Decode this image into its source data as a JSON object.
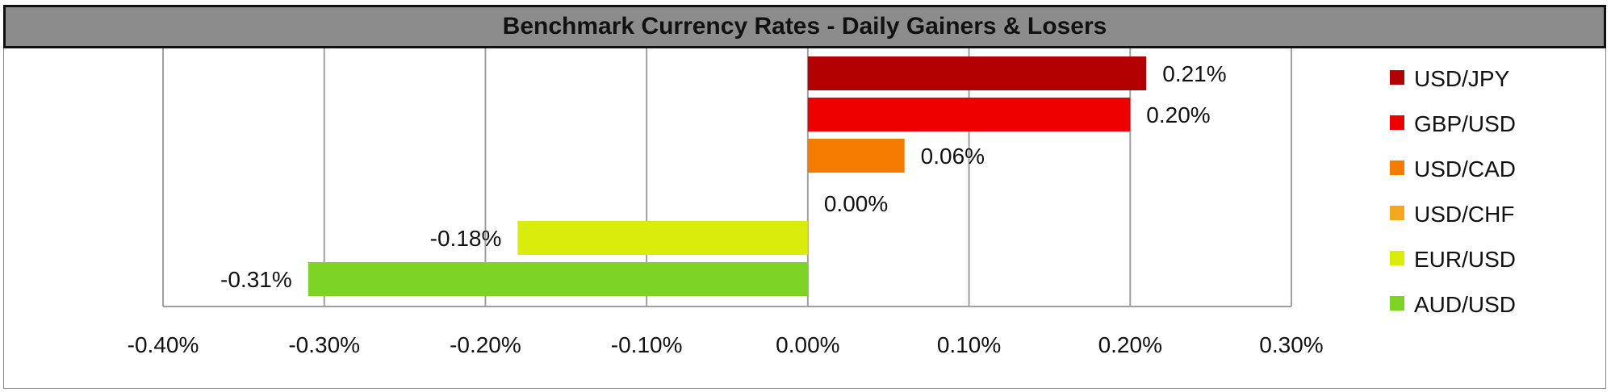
{
  "chart_data": {
    "type": "bar",
    "orientation": "horizontal",
    "title": "Benchmark Currency Rates - Daily Gainers & Losers",
    "xlim": [
      -0.4,
      0.3
    ],
    "x_ticks": [
      "-0.40%",
      "-0.30%",
      "-0.20%",
      "-0.10%",
      "0.00%",
      "0.10%",
      "0.20%",
      "0.30%"
    ],
    "x_tick_values": [
      -0.4,
      -0.3,
      -0.2,
      -0.1,
      0.0,
      0.1,
      0.2,
      0.3
    ],
    "grid": "vertical",
    "legend_position": "right",
    "series": [
      {
        "name": "USD/JPY",
        "value": 0.21,
        "label": "0.21%",
        "color": "#b30000"
      },
      {
        "name": "GBP/USD",
        "value": 0.2,
        "label": "0.20%",
        "color": "#ee0000"
      },
      {
        "name": "USD/CAD",
        "value": 0.06,
        "label": "0.06%",
        "color": "#f57c00"
      },
      {
        "name": "USD/CHF",
        "value": 0.0,
        "label": "0.00%",
        "color": "#f5a71e"
      },
      {
        "name": "EUR/USD",
        "value": -0.18,
        "label": "-0.18%",
        "color": "#d9ec0c"
      },
      {
        "name": "AUD/USD",
        "value": -0.31,
        "label": "-0.31%",
        "color": "#7dd424"
      }
    ]
  }
}
